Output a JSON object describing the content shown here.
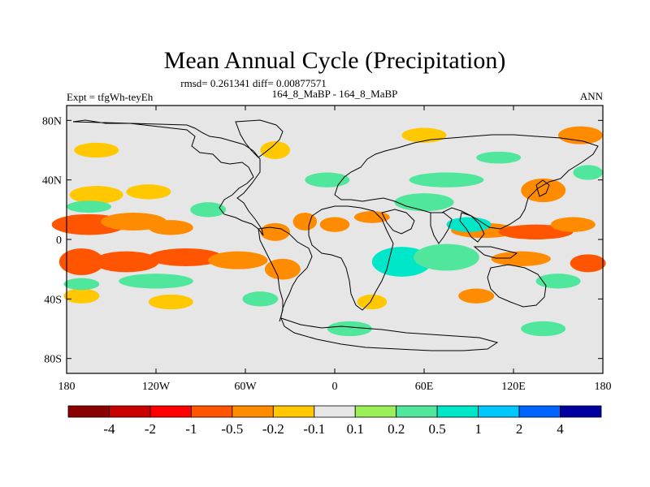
{
  "chart_data": {
    "type": "heatmap",
    "title": "Mean Annual Cycle (Precipitation)",
    "stats": "rmsd= 0.261341 diff= 0.00877571",
    "left_label": "Expt = tfgWh-teyEh",
    "center_label": "164_8_MaBP - 164_8_MaBP",
    "right_label": "ANN",
    "xlim": [
      -180,
      180
    ],
    "ylim": [
      -90,
      90
    ],
    "x_ticks": [
      {
        "value": -180,
        "label": "180"
      },
      {
        "value": -120,
        "label": "120W"
      },
      {
        "value": -60,
        "label": "60W"
      },
      {
        "value": 0,
        "label": "0"
      },
      {
        "value": 60,
        "label": "60E"
      },
      {
        "value": 120,
        "label": "120E"
      },
      {
        "value": 180,
        "label": "180"
      }
    ],
    "y_ticks": [
      {
        "value": 80,
        "label": "80N"
      },
      {
        "value": 40,
        "label": "40N"
      },
      {
        "value": 0,
        "label": "0"
      },
      {
        "value": -40,
        "label": "40S"
      },
      {
        "value": -80,
        "label": "80S"
      }
    ],
    "colorbar": {
      "colors": [
        "#8b0000",
        "#c80000",
        "#ff0000",
        "#ff5500",
        "#ff8c00",
        "#ffc800",
        "#e6e6e6",
        "#9bf05a",
        "#50e69b",
        "#00e6c8",
        "#00c8ff",
        "#0064ff",
        "#0000a0"
      ],
      "labels": [
        "-4",
        "-2",
        "-1",
        "-0.5",
        "-0.2",
        "-0.1",
        "0.1",
        "0.2",
        "0.5",
        "1",
        "2",
        "4"
      ]
    },
    "anomaly_regions": [
      {
        "lon": -165,
        "lat": 10,
        "dlon": 25,
        "dlat": 7,
        "v": -0.6
      },
      {
        "lon": -135,
        "lat": 12,
        "dlon": 22,
        "dlat": 6,
        "v": -0.4
      },
      {
        "lon": -110,
        "lat": 8,
        "dlon": 15,
        "dlat": 5,
        "v": -0.25
      },
      {
        "lon": -170,
        "lat": -15,
        "dlon": 15,
        "dlat": 9,
        "v": -0.8
      },
      {
        "lon": -140,
        "lat": -15,
        "dlon": 22,
        "dlat": 7,
        "v": -0.6
      },
      {
        "lon": -100,
        "lat": -12,
        "dlon": 25,
        "dlat": 6,
        "v": -0.55
      },
      {
        "lon": -65,
        "lat": -14,
        "dlon": 20,
        "dlat": 6,
        "v": -0.45
      },
      {
        "lon": -35,
        "lat": -20,
        "dlon": 12,
        "dlat": 7,
        "v": -0.35
      },
      {
        "lon": -160,
        "lat": 30,
        "dlon": 18,
        "dlat": 6,
        "v": -0.2
      },
      {
        "lon": -125,
        "lat": 32,
        "dlon": 15,
        "dlat": 5,
        "v": -0.2
      },
      {
        "lon": -40,
        "lat": 5,
        "dlon": 10,
        "dlat": 6,
        "v": -0.25
      },
      {
        "lon": -20,
        "lat": 12,
        "dlon": 8,
        "dlat": 6,
        "v": -0.3
      },
      {
        "lon": 0,
        "lat": 10,
        "dlon": 10,
        "dlat": 5,
        "v": -0.4
      },
      {
        "lon": 25,
        "lat": 15,
        "dlon": 12,
        "dlat": 4,
        "v": -0.25
      },
      {
        "lon": 100,
        "lat": 6,
        "dlon": 22,
        "dlat": 5,
        "v": -0.4
      },
      {
        "lon": 135,
        "lat": 5,
        "dlon": 25,
        "dlat": 5,
        "v": -0.6
      },
      {
        "lon": 160,
        "lat": 10,
        "dlon": 15,
        "dlat": 5,
        "v": -0.5
      },
      {
        "lon": 125,
        "lat": -13,
        "dlon": 20,
        "dlat": 5,
        "v": -0.35
      },
      {
        "lon": 170,
        "lat": -16,
        "dlon": 12,
        "dlat": 6,
        "v": -0.6
      },
      {
        "lon": 140,
        "lat": 33,
        "dlon": 15,
        "dlat": 8,
        "v": -0.4
      },
      {
        "lon": 165,
        "lat": 70,
        "dlon": 15,
        "dlat": 6,
        "v": -0.3
      },
      {
        "lon": 60,
        "lat": 70,
        "dlon": 15,
        "dlat": 5,
        "v": -0.2
      },
      {
        "lon": -40,
        "lat": 60,
        "dlon": 10,
        "dlat": 6,
        "v": -0.2
      },
      {
        "lon": -160,
        "lat": 60,
        "dlon": 15,
        "dlat": 5,
        "v": -0.2
      },
      {
        "lon": -170,
        "lat": -38,
        "dlon": 12,
        "dlat": 5,
        "v": -0.2
      },
      {
        "lon": -110,
        "lat": -42,
        "dlon": 15,
        "dlat": 5,
        "v": -0.2
      },
      {
        "lon": 95,
        "lat": -38,
        "dlon": 12,
        "dlat": 5,
        "v": -0.25
      },
      {
        "lon": 25,
        "lat": -42,
        "dlon": 10,
        "dlat": 5,
        "v": -0.2
      },
      {
        "lon": 45,
        "lat": -15,
        "dlon": 20,
        "dlat": 10,
        "v": 0.7
      },
      {
        "lon": 75,
        "lat": -12,
        "dlon": 22,
        "dlat": 9,
        "v": 0.45
      },
      {
        "lon": 90,
        "lat": 10,
        "dlon": 15,
        "dlat": 5,
        "v": 0.55
      },
      {
        "lon": 60,
        "lat": 25,
        "dlon": 20,
        "dlat": 6,
        "v": 0.25
      },
      {
        "lon": 75,
        "lat": 40,
        "dlon": 25,
        "dlat": 5,
        "v": 0.2
      },
      {
        "lon": -5,
        "lat": 40,
        "dlon": 15,
        "dlat": 5,
        "v": 0.2
      },
      {
        "lon": -165,
        "lat": 22,
        "dlon": 15,
        "dlat": 4,
        "v": 0.3
      },
      {
        "lon": -120,
        "lat": -28,
        "dlon": 25,
        "dlat": 5,
        "v": 0.25
      },
      {
        "lon": -85,
        "lat": 20,
        "dlon": 12,
        "dlat": 5,
        "v": 0.2
      },
      {
        "lon": -170,
        "lat": -30,
        "dlon": 12,
        "dlat": 4,
        "v": 0.25
      },
      {
        "lon": -50,
        "lat": -40,
        "dlon": 12,
        "dlat": 5,
        "v": 0.2
      },
      {
        "lon": 10,
        "lat": -60,
        "dlon": 15,
        "dlat": 5,
        "v": 0.2
      },
      {
        "lon": 140,
        "lat": -60,
        "dlon": 15,
        "dlat": 5,
        "v": 0.2
      },
      {
        "lon": 150,
        "lat": -28,
        "dlon": 15,
        "dlat": 5,
        "v": 0.2
      },
      {
        "lon": 170,
        "lat": 45,
        "dlon": 10,
        "dlat": 5,
        "v": 0.2
      },
      {
        "lon": 110,
        "lat": 55,
        "dlon": 15,
        "dlat": 4,
        "v": 0.2
      }
    ]
  }
}
